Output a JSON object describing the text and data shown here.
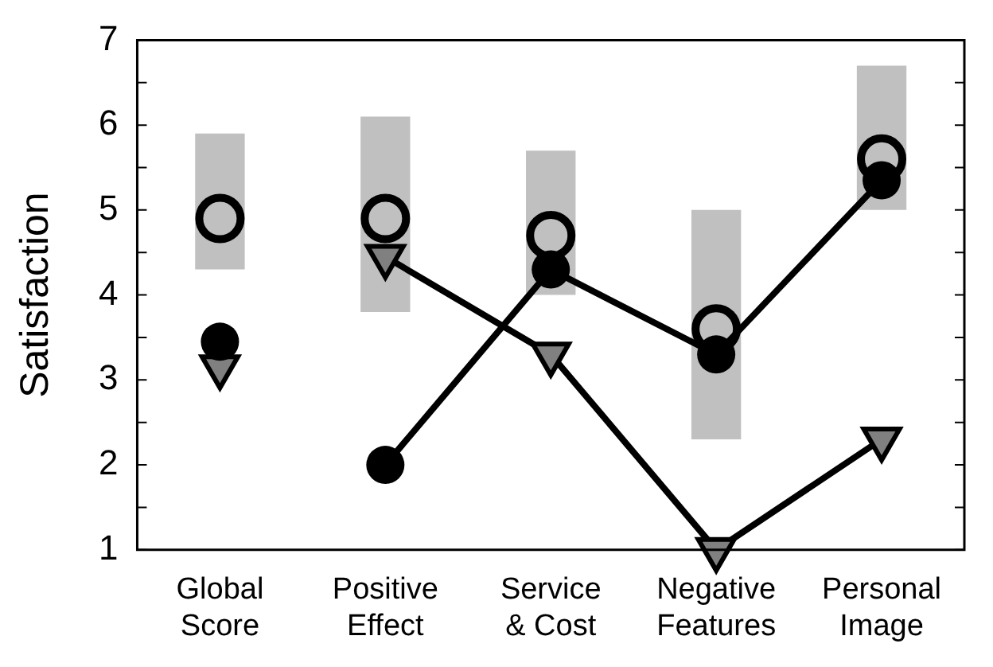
{
  "chart_data": {
    "type": "line",
    "ylabel": "Satisfaction",
    "categories": [
      "Global Score",
      "Positive Effect",
      "Service & Cost",
      "Negative Features",
      "Personal Image"
    ],
    "series": [
      {
        "type": "bar",
        "color": "#c0c0c0",
        "base": [
          4.3,
          3.8,
          4.0,
          2.3,
          5.0
        ],
        "values": [
          1.6,
          2.3,
          1.7,
          2.7,
          1.7
        ]
      },
      {
        "type": "scatter",
        "color": "#000000",
        "marker": "circle",
        "values": [
          4.9,
          4.9,
          4.7,
          3.6,
          5.6
        ]
      },
      {
        "color": "#000000",
        "marker": "circle",
        "values": [
          3.45,
          null,
          null,
          null,
          null
        ]
      },
      {
        "color": "#000000",
        "marker": "circle",
        "values": [
          null,
          2.0,
          4.3,
          3.3,
          5.35
        ]
      },
      {
        "color": "#808080",
        "marker": "triangle",
        "values": [
          3.15,
          null,
          null,
          null,
          null
        ]
      },
      {
        "color": "#808080",
        "marker": "triangle",
        "values": [
          null,
          4.45,
          3.3,
          1.0,
          2.3
        ]
      }
    ],
    "ylim": [
      1,
      7
    ],
    "yticks": [
      1,
      {
        "value": 1.5,
        "label": null
      },
      2,
      {
        "value": 2.5,
        "label": null
      },
      3,
      {
        "value": 3.5,
        "label": null
      },
      4,
      {
        "value": 4.5,
        "label": null
      },
      5,
      {
        "value": 5.5,
        "label": null
      },
      6,
      {
        "value": 6.5,
        "label": null
      },
      7
    ],
    "grid": false,
    "legend": false
  }
}
